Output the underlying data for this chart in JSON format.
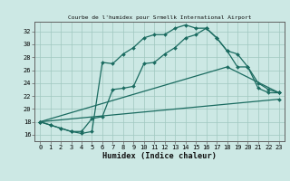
{
  "title": "Courbe de l'humidex pour Srmellk International Airport",
  "xlabel": "Humidex (Indice chaleur)",
  "bg_color": "#cce8e4",
  "grid_color": "#a0c8c0",
  "line_color": "#1a6b60",
  "xlim": [
    -0.5,
    23.5
  ],
  "ylim": [
    15.0,
    33.5
  ],
  "xticks": [
    0,
    1,
    2,
    3,
    4,
    5,
    6,
    7,
    8,
    9,
    10,
    11,
    12,
    13,
    14,
    15,
    16,
    17,
    18,
    19,
    20,
    21,
    22,
    23
  ],
  "yticks": [
    16,
    18,
    20,
    22,
    24,
    26,
    28,
    30,
    32
  ],
  "curve1_x": [
    0,
    1,
    2,
    3,
    4,
    5,
    6,
    7,
    8,
    9,
    10,
    11,
    12,
    13,
    14,
    15,
    16,
    17,
    18,
    19,
    20,
    21,
    22,
    23
  ],
  "curve1_y": [
    18,
    17.5,
    17,
    16.5,
    16.2,
    16.5,
    27.2,
    27.0,
    28.5,
    29.5,
    31.0,
    31.5,
    31.5,
    32.5,
    33.0,
    32.5,
    32.5,
    31.0,
    29.0,
    28.5,
    26.5,
    24.0,
    23.0,
    22.5
  ],
  "curve2_x": [
    0,
    1,
    2,
    3,
    4,
    5,
    6,
    7,
    8,
    9,
    10,
    11,
    12,
    13,
    14,
    15,
    16,
    17,
    18,
    19,
    20,
    21,
    22,
    23
  ],
  "curve2_y": [
    18,
    17.5,
    17,
    16.5,
    16.5,
    18.5,
    18.8,
    23.0,
    23.2,
    23.5,
    27.0,
    27.2,
    28.5,
    29.5,
    31.0,
    31.5,
    32.5,
    31.0,
    29.0,
    26.5,
    26.5,
    23.2,
    22.5,
    22.5
  ],
  "curve3_x": [
    0,
    18,
    23
  ],
  "curve3_y": [
    18,
    26.5,
    22.5
  ],
  "curve4_x": [
    0,
    23
  ],
  "curve4_y": [
    18,
    21.5
  ],
  "markersize": 2.0,
  "linewidth": 0.9
}
